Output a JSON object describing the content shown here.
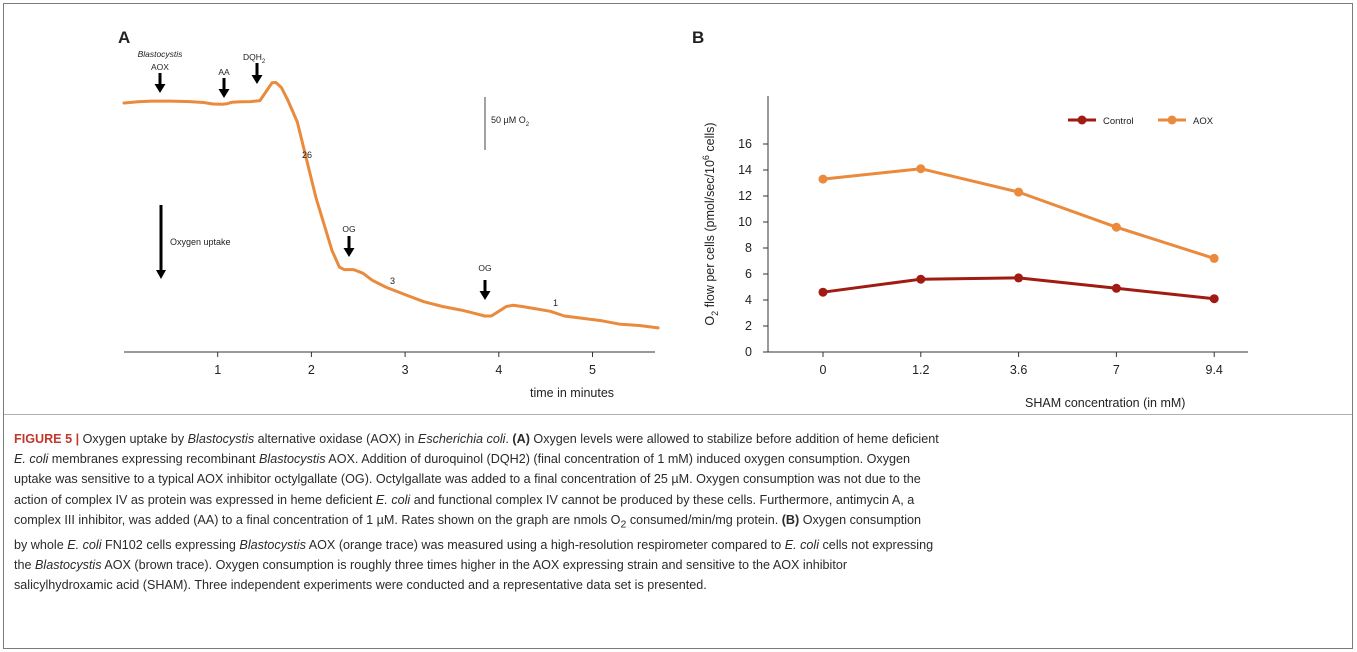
{
  "colors": {
    "orange": "#ea8a3c",
    "dark_red": "#a01b12",
    "figure_label": "#c0392b"
  },
  "panel_a": {
    "label": "A",
    "markers": {
      "blasto": "Blastocystis",
      "aox": "AOX",
      "aa": "AA",
      "dqh2_base": "DQH",
      "dqh2_sub": "2",
      "og": "OG"
    },
    "rates": [
      "26",
      "3",
      "1"
    ],
    "scale_bar": {
      "value": "50 µM O",
      "sub": "2"
    },
    "oxygen_uptake": "Oxygen uptake",
    "xlabel": "time in minutes"
  },
  "panel_b": {
    "label": "B",
    "ylabel_parts": [
      "O",
      "2",
      " flow per cells (pmol/sec/10",
      "6",
      " cells)"
    ],
    "xlabel": "SHAM concentration (in mM)"
  },
  "chart_data": [
    {
      "type": "line",
      "title": "",
      "xlabel": "time in minutes",
      "ylabel": "",
      "x_ticks": [
        1,
        2,
        3,
        4,
        5
      ],
      "xlim": [
        0,
        5.7
      ],
      "annotations": [
        "Blastocystis AOX",
        "AA",
        "DQH2",
        "OG",
        "OG",
        "26",
        "3",
        "1",
        "50 µM O2",
        "Oxygen uptake"
      ],
      "series": [
        {
          "x": [
            0.0,
            0.15,
            0.3,
            0.5,
            0.7,
            0.85,
            0.95,
            1.05,
            1.1,
            1.15,
            1.25,
            1.35,
            1.45,
            1.52,
            1.58,
            1.62,
            1.68,
            1.75,
            1.85,
            1.95,
            2.05,
            2.15,
            2.22,
            2.3,
            2.35,
            2.45,
            2.55,
            2.65,
            2.8,
            3.0,
            3.2,
            3.4,
            3.6,
            3.75,
            3.85,
            3.92,
            4.0,
            4.08,
            4.15,
            4.25,
            4.4,
            4.55,
            4.7,
            4.9,
            5.1,
            5.3,
            5.5,
            5.7
          ],
          "y": [
            0.0,
            0.5,
            0.8,
            0.8,
            0.6,
            0.2,
            -0.4,
            -0.5,
            -0.3,
            0.3,
            0.5,
            0.6,
            1.0,
            5.0,
            8.5,
            8.6,
            6.5,
            1.0,
            -8.0,
            -24.0,
            -40.0,
            -53.0,
            -62.0,
            -69.0,
            -70.0,
            -70.0,
            -71.5,
            -74.5,
            -77.5,
            -80.5,
            -83.5,
            -85.5,
            -87.0,
            -88.5,
            -89.5,
            -89.5,
            -87.5,
            -85.5,
            -85.0,
            -85.5,
            -86.5,
            -87.5,
            -89.5,
            -90.5,
            -91.5,
            -93.0,
            -93.5,
            -94.5
          ]
        }
      ]
    },
    {
      "type": "line",
      "title": "",
      "xlabel": "SHAM concentration (in mM)",
      "ylabel": "O2 flow per cells (pmol/sec/10^6 cells)",
      "categories": [
        "0",
        "1.2",
        "3.6",
        "7",
        "9.4"
      ],
      "ylim": [
        0,
        17
      ],
      "yticks": [
        0,
        2,
        4,
        6,
        8,
        10,
        12,
        14,
        16
      ],
      "legend_position": "top-right",
      "series": [
        {
          "name": "Control",
          "color": "#a01b12",
          "values": [
            4.6,
            5.6,
            5.7,
            4.9,
            4.1
          ]
        },
        {
          "name": "AOX",
          "color": "#ea8a3c",
          "values": [
            13.3,
            14.1,
            12.3,
            9.6,
            7.2
          ]
        }
      ]
    }
  ],
  "caption": {
    "fig_label": "FIGURE 5 |",
    "parts": [
      " Oxygen uptake by ",
      {
        "i": "Blastocystis"
      },
      " alternative oxidase (AOX) in ",
      {
        "i": "Escherichia coli"
      },
      ". ",
      {
        "b": "(A)"
      },
      " Oxygen levels were allowed to stabilize before addition of heme deficient ",
      {
        "br": true
      },
      {
        "i": "E. coli"
      },
      " membranes expressing recombinant ",
      {
        "i": "Blastocystis"
      },
      " AOX. Addition of duroquinol (DQH2) (final concentration of 1 mM) induced oxygen consumption. Oxygen",
      {
        "br": true
      },
      "uptake was sensitive to a typical AOX inhibitor octylgallate (OG). Octylgallate was added to a final concentration of 25 µM. Oxygen consumption was not due to the",
      {
        "br": true
      },
      "action of complex IV as protein was expressed in heme deficient ",
      {
        "i": "E. coli"
      },
      " and functional complex IV cannot be produced by these cells. Furthermore, antimycin A, a",
      {
        "br": true
      },
      "complex III inhibitor, was added (AA) to a final concentration of 1 µM. Rates shown on the graph are nmols O",
      {
        "sub": "2"
      },
      " consumed/min/mg protein. ",
      {
        "b": "(B)"
      },
      " Oxygen consumption",
      {
        "br": true
      },
      "by whole ",
      {
        "i": "E. coli"
      },
      " FN102 cells expressing ",
      {
        "i": "Blastocystis"
      },
      " AOX (orange trace) was measured using a high-resolution respirometer compared to ",
      {
        "i": "E. coli"
      },
      " cells not expressing",
      {
        "br": true
      },
      "the ",
      {
        "i": "Blastocystis"
      },
      " AOX (brown trace). Oxygen consumption is roughly three times higher in the AOX expressing strain and sensitive to the AOX inhibitor",
      {
        "br": true
      },
      "salicylhydroxamic acid (SHAM). Three independent experiments were conducted and a representative data set is presented."
    ]
  }
}
